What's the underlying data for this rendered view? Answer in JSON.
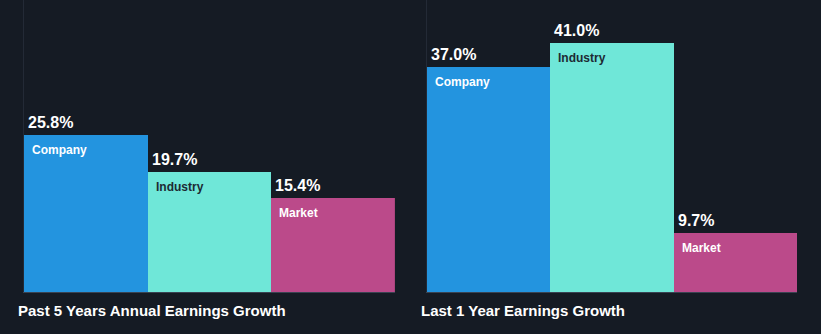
{
  "chart_data": [
    {
      "type": "bar",
      "title": "Past 5 Years Annual Earnings Growth",
      "categories": [
        "Company",
        "Industry",
        "Market"
      ],
      "values": [
        25.8,
        19.7,
        15.4
      ],
      "value_labels": [
        "25.8%",
        "19.7%",
        "15.4%"
      ],
      "colors": [
        "#2394df",
        "#6fe7d8",
        "#bb4a8a"
      ],
      "data_labels": true,
      "tick_labels": false,
      "grid": false,
      "ylim": [
        0,
        48
      ]
    },
    {
      "type": "bar",
      "title": "Last 1 Year Earnings Growth",
      "categories": [
        "Company",
        "Industry",
        "Market"
      ],
      "values": [
        37.0,
        41.0,
        9.7
      ],
      "value_labels": [
        "37.0%",
        "41.0%",
        "9.7%"
      ],
      "colors": [
        "#2394df",
        "#6fe7d8",
        "#bb4a8a"
      ],
      "data_labels": true,
      "tick_labels": false,
      "grid": false,
      "ylim": [
        0,
        48
      ]
    }
  ]
}
